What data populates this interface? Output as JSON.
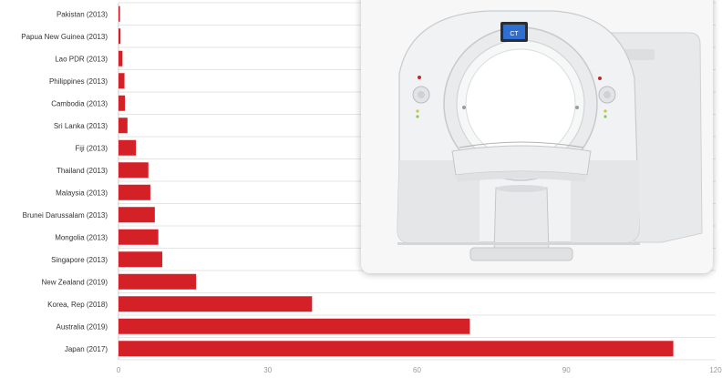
{
  "chart_data": {
    "type": "bar",
    "orientation": "horizontal",
    "categories": [
      "Pakistan (2013)",
      "Papua New Guinea (2013)",
      "Lao PDR (2013)",
      "Philippines (2013)",
      "Cambodia (2013)",
      "Sri Lanka (2013)",
      "Fiji (2013)",
      "Thailand (2013)",
      "Malaysia (2013)",
      "Brunei Darussalam (2013)",
      "Mongolia (2013)",
      "Singapore (2013)",
      "New Zealand (2019)",
      "Korea, Rep (2018)",
      "Australia (2019)",
      "Japan (2017)"
    ],
    "values": [
      0.3,
      0.4,
      0.8,
      1.2,
      1.3,
      1.8,
      3.5,
      6.0,
      6.4,
      7.3,
      8.0,
      8.8,
      15.6,
      38.9,
      70.6,
      111.5
    ],
    "x_ticks": [
      "0",
      "30",
      "60",
      "90",
      "120"
    ],
    "xlim": [
      0,
      120
    ],
    "bar_color": "#d42128",
    "grid": true
  },
  "overlay": {
    "image": "ct-scanner-photo",
    "scanner_display": "CT"
  }
}
